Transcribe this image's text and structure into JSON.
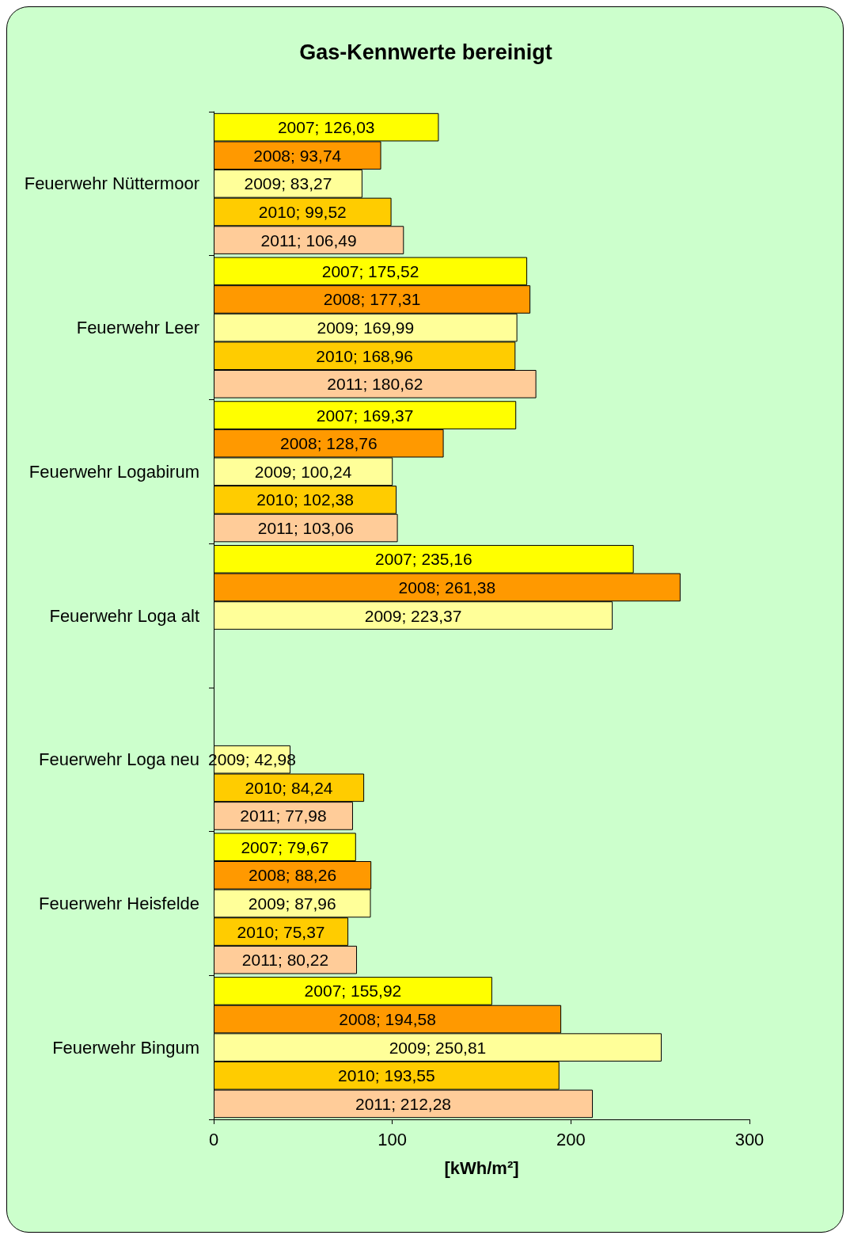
{
  "chart_data": {
    "type": "bar",
    "orientation": "horizontal",
    "title": "Gas-Kennwerte bereinigt",
    "xlabel": "[kWh/m²]",
    "categories": [
      "Feuerwehr Nüttermoor",
      "Feuerwehr Leer",
      "Feuerwehr Logabirum",
      "Feuerwehr Loga alt",
      "Feuerwehr Loga neu",
      "Feuerwehr Heisfelde",
      "Feuerwehr Bingum"
    ],
    "series": [
      {
        "color": "#ffff00",
        "values": [
          126.03,
          175.52,
          169.37,
          235.16,
          null,
          79.67,
          155.92
        ],
        "value_labels": [
          "2007; 126,03",
          "2007; 175,52",
          "2007; 169,37",
          "2007; 235,16",
          null,
          "2007; 79,67",
          "2007; 155,92"
        ]
      },
      {
        "color": "#ff9900",
        "values": [
          93.74,
          177.31,
          128.76,
          261.38,
          null,
          88.26,
          194.58
        ],
        "value_labels": [
          "2008; 93,74",
          "2008; 177,31",
          "2008; 128,76",
          "2008; 261,38",
          null,
          "2008; 88,26",
          "2008; 194,58"
        ]
      },
      {
        "color": "#ffff99",
        "values": [
          83.27,
          169.99,
          100.24,
          223.37,
          42.98,
          87.96,
          250.81
        ],
        "value_labels": [
          "2009; 83,27",
          "2009; 169,99",
          "2009; 100,24",
          "2009; 223,37",
          "2009; 42,98",
          "2009; 87,96",
          "2009; 250,81"
        ]
      },
      {
        "color": "#ffcc00",
        "values": [
          99.52,
          168.96,
          102.38,
          null,
          84.24,
          75.37,
          193.55
        ],
        "value_labels": [
          "2010; 99,52",
          "2010; 168,96",
          "2010; 102,38",
          null,
          "2010; 84,24",
          "2010; 75,37",
          "2010; 193,55"
        ]
      },
      {
        "color": "#ffcc99",
        "values": [
          106.49,
          180.62,
          103.06,
          null,
          77.98,
          80.22,
          212.28
        ],
        "value_labels": [
          "2011; 106,49",
          "2011; 180,62",
          "2011; 103,06",
          null,
          "2011; 77,98",
          "2011; 80,22",
          "2011; 212,28"
        ]
      }
    ],
    "xlim": [
      0,
      300
    ],
    "xticks": [
      0,
      100,
      200,
      300
    ],
    "grid": false
  }
}
